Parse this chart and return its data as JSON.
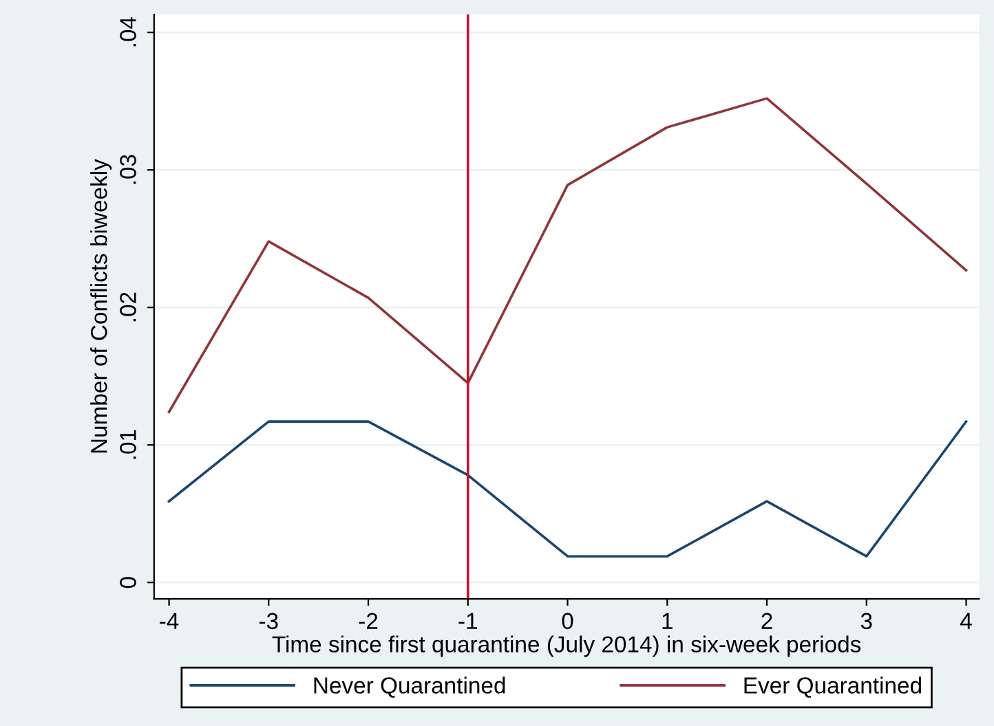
{
  "chart_data": {
    "type": "line",
    "xlabel": "Time since first quarantine (July 2014) in six-week periods",
    "ylabel": "Number of Conflicts biweekly",
    "x": [
      -4,
      -3,
      -2,
      -1,
      0,
      1,
      2,
      3,
      4
    ],
    "series": [
      {
        "name": "Never Quarantined",
        "color": "#1a476f",
        "values": [
          0.0059,
          0.0117,
          0.0117,
          0.0078,
          0.0019,
          0.0019,
          0.0059,
          0.0019,
          0.0117
        ]
      },
      {
        "name": "Ever Quarantined",
        "color": "#90353b",
        "values": [
          0.0124,
          0.0248,
          0.0207,
          0.0145,
          0.0289,
          0.0331,
          0.0352,
          0.029,
          0.0227
        ]
      }
    ],
    "xlim": [
      -4.15,
      4.13
    ],
    "ylim": [
      -0.0012,
      0.0413
    ],
    "xticks": [
      -4,
      -3,
      -2,
      -1,
      0,
      1,
      2,
      3,
      4
    ],
    "yticks": [
      {
        "value": 0,
        "label": "0"
      },
      {
        "value": 0.01,
        "label": ".01"
      },
      {
        "value": 0.02,
        "label": ".02"
      },
      {
        "value": 0.03,
        "label": ".03"
      },
      {
        "value": 0.04,
        "label": ".04"
      }
    ],
    "ref_lines": [
      {
        "axis": "x",
        "value": -1,
        "color": "#c8102e"
      }
    ],
    "grid": "y",
    "legend": "bottom",
    "marker": "none",
    "line_style": "solid"
  }
}
